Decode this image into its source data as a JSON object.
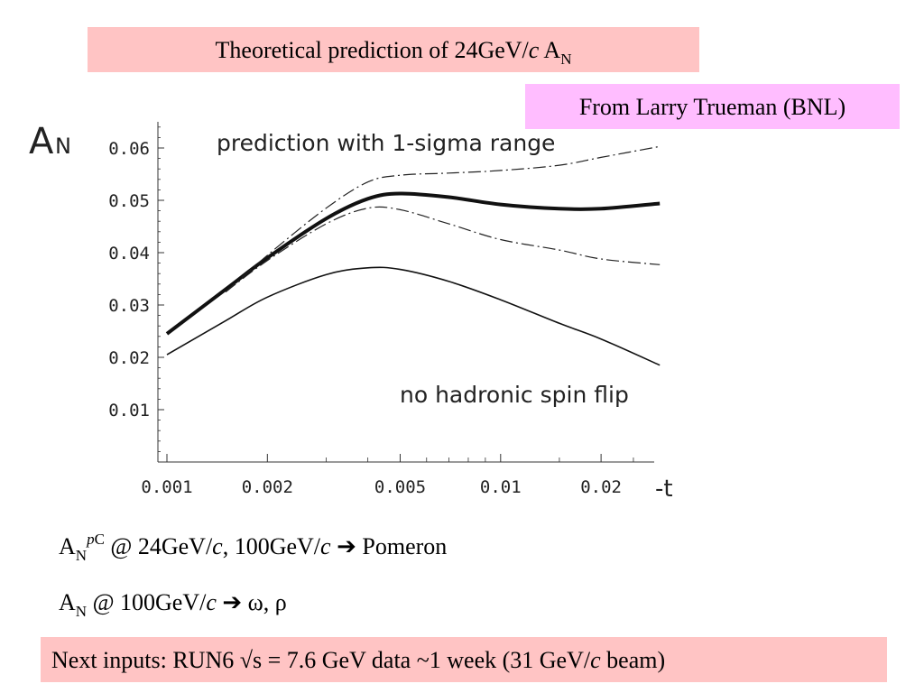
{
  "slide": {
    "title_text": "Theoretical prediction of 24GeV/",
    "title_italic": "c",
    "title_an": "A",
    "title_an_sub": "N",
    "credit": "From Larry Trueman (BNL)",
    "line1": {
      "a": "A",
      "a_sub": "N",
      "sup_italic": "p",
      "sup_rest": "C",
      "text1": " @ 24GeV/",
      "c1": "c",
      "text2": ", 100GeV/",
      "c2": "c",
      "arrow": " ➔ ",
      "text3": "Pomeron"
    },
    "line2": {
      "a": "A",
      "a_sub": "N",
      "text1": " @ 100GeV/",
      "c1": "c",
      "arrow": " ➔ ",
      "text2": "ω, ρ"
    },
    "next_inputs": {
      "text1": "Next inputs: RUN6 √s = 7.6 GeV data ~1 week  (31 GeV/",
      "c": "c",
      "text2": " beam)"
    }
  },
  "chart_data": {
    "type": "line",
    "x_scale": "log",
    "ylabel": "AN",
    "xlabel": "-t",
    "xlim": [
      0.001,
      0.03
    ],
    "ylim": [
      0.0,
      0.065
    ],
    "x_ticks": [
      "0.001",
      "0.002",
      "0.005",
      "0.01",
      "0.02"
    ],
    "x_tick_values": [
      0.001,
      0.002,
      0.005,
      0.01,
      0.02
    ],
    "y_ticks": [
      "0.01",
      "0.02",
      "0.03",
      "0.04",
      "0.05",
      "0.06"
    ],
    "y_tick_values": [
      0.01,
      0.02,
      0.03,
      0.04,
      0.05,
      0.06
    ],
    "annotations": [
      "prediction with 1-sigma range",
      "no hadronic spin flip"
    ],
    "series": [
      {
        "key": "prediction",
        "style": "thick",
        "x": [
          0.001,
          0.0015,
          0.002,
          0.003,
          0.004,
          0.005,
          0.007,
          0.01,
          0.015,
          0.02,
          0.03
        ],
        "y": [
          0.0245,
          0.033,
          0.039,
          0.0465,
          0.0503,
          0.0513,
          0.0506,
          0.0492,
          0.0484,
          0.0484,
          0.0494
        ]
      },
      {
        "key": "upper",
        "style": "dashdot",
        "x": [
          0.0015,
          0.002,
          0.003,
          0.004,
          0.005,
          0.007,
          0.01,
          0.015,
          0.02,
          0.03
        ],
        "y": [
          0.0325,
          0.0395,
          0.0485,
          0.0535,
          0.0548,
          0.0552,
          0.0557,
          0.0567,
          0.0582,
          0.0603
        ]
      },
      {
        "key": "lower",
        "style": "dashdot",
        "x": [
          0.0015,
          0.002,
          0.003,
          0.004,
          0.005,
          0.007,
          0.01,
          0.015,
          0.02,
          0.03
        ],
        "y": [
          0.0325,
          0.0385,
          0.0455,
          0.0485,
          0.0482,
          0.0455,
          0.0425,
          0.0405,
          0.0388,
          0.0377
        ]
      },
      {
        "key": "no_hadronic_spin_flip",
        "style": "thin",
        "x": [
          0.001,
          0.0015,
          0.002,
          0.003,
          0.004,
          0.005,
          0.007,
          0.01,
          0.015,
          0.02,
          0.03
        ],
        "y": [
          0.0205,
          0.027,
          0.0315,
          0.0358,
          0.0371,
          0.0368,
          0.0345,
          0.031,
          0.0265,
          0.0235,
          0.0185
        ]
      }
    ]
  }
}
